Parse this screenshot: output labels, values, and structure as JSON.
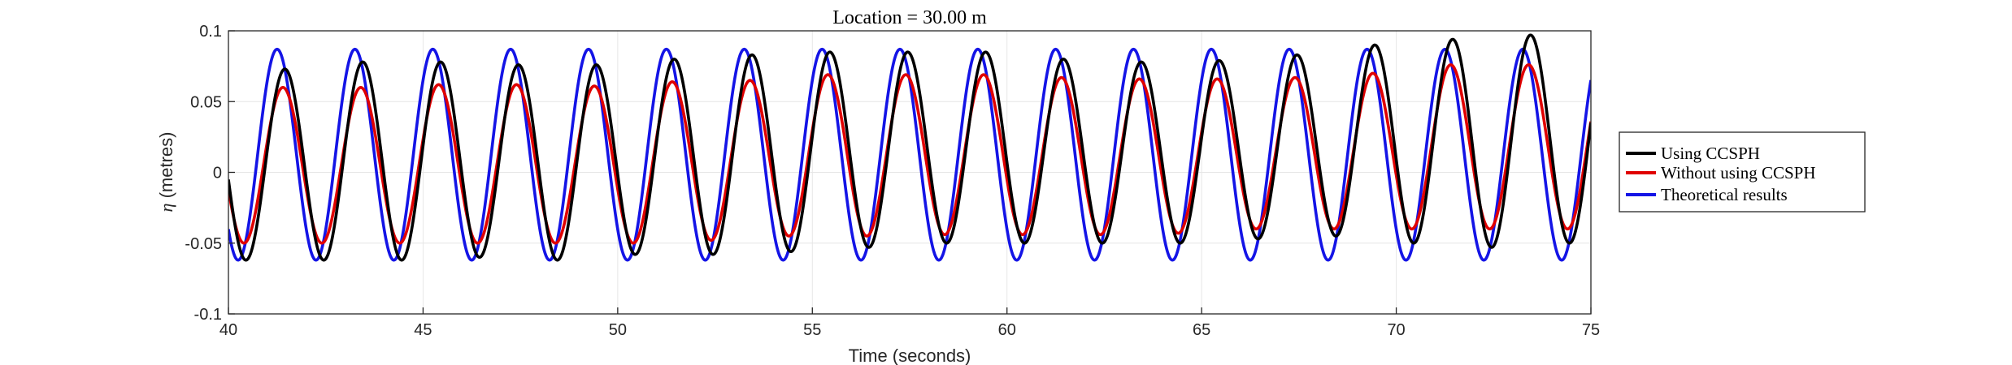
{
  "chart_data": {
    "type": "line",
    "title": "Location = 30.00 m",
    "xlabel": "Time (seconds)",
    "ylabel_symbol": "η",
    "ylabel_rest": " (metres)",
    "xlim": [
      40,
      75
    ],
    "ylim": [
      -0.1,
      0.1
    ],
    "xticks": [
      40,
      45,
      50,
      55,
      60,
      65,
      70,
      75
    ],
    "yticks": [
      -0.1,
      -0.05,
      0,
      0.05,
      0.1
    ],
    "xtick_labels": [
      "40",
      "45",
      "50",
      "55",
      "60",
      "65",
      "70",
      "75"
    ],
    "ytick_labels": [
      "-0.1",
      "-0.05",
      "0",
      "0.05",
      "0.1"
    ],
    "grid": true,
    "legend_position": "outside-right",
    "wave": {
      "period": 2.0,
      "theoretical_crest_times": [
        41.25,
        43.25,
        45.25,
        47.25,
        49.25,
        51.25,
        53.25,
        55.25,
        57.25,
        59.25,
        61.25,
        63.25,
        65.25,
        67.25,
        69.25,
        71.25,
        73.25
      ]
    },
    "series": [
      {
        "name": "Using CCSPH",
        "color": "#000000",
        "phase_lag": 0.2,
        "crests": [
          0.073,
          0.078,
          0.078,
          0.076,
          0.076,
          0.08,
          0.083,
          0.085,
          0.085,
          0.085,
          0.08,
          0.078,
          0.079,
          0.083,
          0.09,
          0.094,
          0.097
        ],
        "troughs": [
          -0.062,
          -0.062,
          -0.06,
          -0.062,
          -0.058,
          -0.058,
          -0.056,
          -0.053,
          -0.05,
          -0.05,
          -0.05,
          -0.05,
          -0.047,
          -0.045,
          -0.05,
          -0.053,
          -0.05
        ]
      },
      {
        "name": "Without using CCSPH",
        "color": "#e00000",
        "phase_lag": 0.15,
        "crests": [
          0.06,
          0.06,
          0.062,
          0.062,
          0.061,
          0.064,
          0.065,
          0.069,
          0.069,
          0.069,
          0.067,
          0.066,
          0.066,
          0.067,
          0.07,
          0.076,
          0.076
        ],
        "troughs": [
          -0.05,
          -0.05,
          -0.05,
          -0.05,
          -0.05,
          -0.048,
          -0.045,
          -0.045,
          -0.044,
          -0.044,
          -0.044,
          -0.043,
          -0.04,
          -0.04,
          -0.04,
          -0.04,
          -0.04
        ]
      },
      {
        "name": "Theoretical results",
        "color": "#1414e6",
        "phase_lag": 0.0,
        "crest_value": 0.087,
        "trough_value": -0.062
      }
    ]
  }
}
